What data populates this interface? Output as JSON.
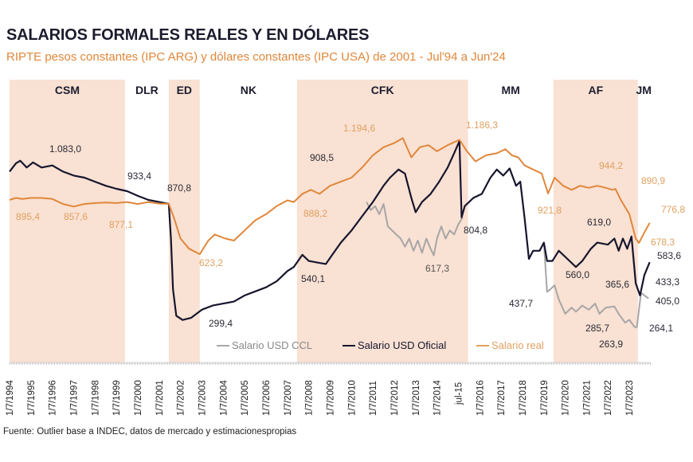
{
  "header": {
    "title": "SALARIOS FORMALES REALES Y EN DÓLARES",
    "subtitle": "RIPTE pesos constantes (IPC ARG) y dólares constantes (IPC USA) de 2001 - Jul'94 a Jun'24"
  },
  "footer": {
    "source": "Fuente: Outlier base a INDEC, datos de mercado y estimacionespropias"
  },
  "colors": {
    "real": "#e0873a",
    "oficial": "#15152e",
    "ccl": "#a6a6a6",
    "band": "#f9e1d3"
  },
  "chart_data": {
    "type": "line",
    "title": "SALARIOS FORMALES REALES Y EN DÓLARES",
    "xlim": [
      1994.5,
      2024.45
    ],
    "ylim": [
      250,
      1250
    ],
    "x_tick_labels": [
      "1/7/1994",
      "1/7/1995",
      "1/7/1996",
      "1/7/1997",
      "1/7/1998",
      "1/7/1999",
      "1/7/2000",
      "1/7/2001",
      "1/7/2002",
      "1/7/2003",
      "1/7/2004",
      "1/7/2005",
      "1/7/2006",
      "1/7/2007",
      "1/7/2008",
      "1/7/2009",
      "1/7/2010",
      "1/7/2011",
      "1/7/2012",
      "1/7/2013",
      "1/7/2014",
      "jul-15",
      "1/7/2016",
      "1/7/2017",
      "1/7/2018",
      "1/7/2019",
      "1/7/2020",
      "1/7/2021",
      "1/7/2022",
      "1/7/2023"
    ],
    "periods": [
      {
        "label": "CSM",
        "start": 1994.5,
        "end": 1999.9,
        "shaded": true
      },
      {
        "label": "DLR",
        "start": 1999.9,
        "end": 2001.95,
        "shaded": false
      },
      {
        "label": "ED",
        "start": 2001.95,
        "end": 2003.4,
        "shaded": true
      },
      {
        "label": "NK",
        "start": 2003.4,
        "end": 2007.95,
        "shaded": false
      },
      {
        "label": "CFK",
        "start": 2007.95,
        "end": 2015.95,
        "shaded": true
      },
      {
        "label": "MM",
        "start": 2015.95,
        "end": 2019.95,
        "shaded": false
      },
      {
        "label": "AF",
        "start": 2019.95,
        "end": 2023.9,
        "shaded": true
      },
      {
        "label": "JM",
        "start": 2023.9,
        "end": 2024.45,
        "shaded": false
      }
    ],
    "legend": [
      "Salario USD CCL",
      "Salario USD Oficial",
      "Salario real"
    ],
    "legend_position": "bottom-center",
    "series": [
      {
        "name": "Salario USD CCL",
        "color_key": "ccl",
        "points": [
          [
            2011.2,
            880
          ],
          [
            2011.4,
            840
          ],
          [
            2011.6,
            860
          ],
          [
            2011.8,
            820
          ],
          [
            2012.0,
            870
          ],
          [
            2012.2,
            760
          ],
          [
            2012.5,
            730
          ],
          [
            2012.8,
            700
          ],
          [
            2013.0,
            660
          ],
          [
            2013.2,
            700
          ],
          [
            2013.4,
            640
          ],
          [
            2013.6,
            690
          ],
          [
            2013.8,
            630
          ],
          [
            2014.0,
            700
          ],
          [
            2014.2,
            650
          ],
          [
            2014.35,
            617.3
          ],
          [
            2014.5,
            700
          ],
          [
            2014.7,
            760
          ],
          [
            2014.9,
            700
          ],
          [
            2015.1,
            740
          ],
          [
            2015.3,
            720
          ],
          [
            2015.5,
            770
          ],
          [
            2015.7,
            804.8
          ],
          [
            2019.5,
            680
          ],
          [
            2019.65,
            437.7
          ],
          [
            2019.8,
            450
          ],
          [
            2020.0,
            470
          ],
          [
            2020.2,
            400
          ],
          [
            2020.5,
            330
          ],
          [
            2020.8,
            360
          ],
          [
            2021.0,
            340
          ],
          [
            2021.3,
            370
          ],
          [
            2021.6,
            350
          ],
          [
            2021.9,
            380
          ],
          [
            2022.1,
            330
          ],
          [
            2022.4,
            360
          ],
          [
            2022.8,
            365.6
          ],
          [
            2023.0,
            330
          ],
          [
            2023.3,
            285.7
          ],
          [
            2023.5,
            300
          ],
          [
            2023.75,
            263.9
          ],
          [
            2023.85,
            264.1
          ],
          [
            2024.05,
            433.3
          ],
          [
            2024.2,
            420
          ],
          [
            2024.4,
            405.0
          ]
        ]
      },
      {
        "name": "Salario USD Oficial",
        "color_key": "oficial",
        "points": [
          [
            1994.5,
            1030
          ],
          [
            1994.8,
            1070
          ],
          [
            1995.0,
            1083.0
          ],
          [
            1995.3,
            1050
          ],
          [
            1995.6,
            1075
          ],
          [
            1996.0,
            1050
          ],
          [
            1996.5,
            1060
          ],
          [
            1997.0,
            1030
          ],
          [
            1997.5,
            1010
          ],
          [
            1998.0,
            1000
          ],
          [
            1998.5,
            980
          ],
          [
            1999.0,
            960
          ],
          [
            1999.5,
            945
          ],
          [
            2000.0,
            933.4
          ],
          [
            2000.5,
            910
          ],
          [
            2001.0,
            890
          ],
          [
            2001.5,
            880
          ],
          [
            2001.95,
            870.8
          ],
          [
            2002.05,
            700
          ],
          [
            2002.15,
            450
          ],
          [
            2002.3,
            320
          ],
          [
            2002.6,
            299.4
          ],
          [
            2003.0,
            310
          ],
          [
            2003.5,
            350
          ],
          [
            2004.0,
            370
          ],
          [
            2004.5,
            380
          ],
          [
            2005.0,
            390
          ],
          [
            2005.5,
            420
          ],
          [
            2006.0,
            440
          ],
          [
            2006.5,
            460
          ],
          [
            2007.0,
            490
          ],
          [
            2007.5,
            540.1
          ],
          [
            2007.8,
            560
          ],
          [
            2008.2,
            620
          ],
          [
            2008.5,
            590
          ],
          [
            2009.0,
            580
          ],
          [
            2009.3,
            575
          ],
          [
            2009.6,
            620
          ],
          [
            2010.0,
            680
          ],
          [
            2010.5,
            740
          ],
          [
            2011.0,
            810
          ],
          [
            2011.5,
            880
          ],
          [
            2012.0,
            960
          ],
          [
            2012.3,
            1000
          ],
          [
            2012.7,
            1040
          ],
          [
            2013.0,
            1020
          ],
          [
            2013.3,
            900
          ],
          [
            2013.5,
            830
          ],
          [
            2013.8,
            880
          ],
          [
            2014.2,
            920
          ],
          [
            2014.6,
            980
          ],
          [
            2015.0,
            1050
          ],
          [
            2015.3,
            1120
          ],
          [
            2015.55,
            1180
          ],
          [
            2015.65,
            804.8
          ],
          [
            2015.8,
            860
          ],
          [
            2016.2,
            900
          ],
          [
            2016.6,
            920
          ],
          [
            2017.0,
            1000
          ],
          [
            2017.3,
            1040
          ],
          [
            2017.6,
            1010
          ],
          [
            2017.9,
            1045
          ],
          [
            2018.2,
            960
          ],
          [
            2018.4,
            980
          ],
          [
            2018.6,
            800
          ],
          [
            2018.8,
            600
          ],
          [
            2019.0,
            640
          ],
          [
            2019.3,
            640
          ],
          [
            2019.5,
            680
          ],
          [
            2019.65,
            590
          ],
          [
            2019.9,
            590
          ],
          [
            2020.2,
            640
          ],
          [
            2020.6,
            600
          ],
          [
            2021.0,
            560.0
          ],
          [
            2021.3,
            590
          ],
          [
            2021.7,
            650
          ],
          [
            2022.0,
            680
          ],
          [
            2022.5,
            670
          ],
          [
            2022.8,
            700
          ],
          [
            2023.0,
            640
          ],
          [
            2023.2,
            700
          ],
          [
            2023.4,
            650
          ],
          [
            2023.6,
            710
          ],
          [
            2023.8,
            480
          ],
          [
            2024.0,
            420
          ],
          [
            2024.2,
            520
          ],
          [
            2024.45,
            583.6
          ]
        ]
      },
      {
        "name": "Salario real",
        "color_key": "real",
        "points": [
          [
            1994.5,
            890
          ],
          [
            1994.8,
            900
          ],
          [
            1995.1,
            895.4
          ],
          [
            1995.5,
            900
          ],
          [
            1996.0,
            900
          ],
          [
            1996.5,
            895
          ],
          [
            1997.0,
            870
          ],
          [
            1997.5,
            857.6
          ],
          [
            1998.0,
            870
          ],
          [
            1998.5,
            875
          ],
          [
            1999.0,
            877.1
          ],
          [
            1999.5,
            875
          ],
          [
            2000.0,
            880
          ],
          [
            2000.5,
            870
          ],
          [
            2001.0,
            880
          ],
          [
            2001.5,
            872
          ],
          [
            2001.95,
            870.8
          ],
          [
            2002.2,
            800
          ],
          [
            2002.5,
            700
          ],
          [
            2002.9,
            650
          ],
          [
            2003.4,
            623.2
          ],
          [
            2003.8,
            690
          ],
          [
            2004.1,
            720
          ],
          [
            2004.6,
            700
          ],
          [
            2005.0,
            690
          ],
          [
            2005.5,
            740
          ],
          [
            2006.0,
            790
          ],
          [
            2006.5,
            820
          ],
          [
            2007.0,
            860
          ],
          [
            2007.5,
            888.2
          ],
          [
            2007.8,
            880
          ],
          [
            2008.2,
            920
          ],
          [
            2008.6,
            940
          ],
          [
            2009.0,
            920
          ],
          [
            2009.5,
            960
          ],
          [
            2010.0,
            980
          ],
          [
            2010.5,
            1000
          ],
          [
            2011.0,
            1050
          ],
          [
            2011.5,
            1110
          ],
          [
            2012.0,
            1150
          ],
          [
            2012.5,
            1170
          ],
          [
            2012.9,
            1194.6
          ],
          [
            2013.3,
            1100
          ],
          [
            2013.7,
            1150
          ],
          [
            2014.1,
            1160
          ],
          [
            2014.5,
            1130
          ],
          [
            2015.0,
            1160
          ],
          [
            2015.55,
            1186.3
          ],
          [
            2015.9,
            1130
          ],
          [
            2016.3,
            1080
          ],
          [
            2016.8,
            1110
          ],
          [
            2017.3,
            1120
          ],
          [
            2017.7,
            1140
          ],
          [
            2018.0,
            1110
          ],
          [
            2018.3,
            1100
          ],
          [
            2018.6,
            1060
          ],
          [
            2019.0,
            1040
          ],
          [
            2019.4,
            1020
          ],
          [
            2019.7,
            921.8
          ],
          [
            2020.0,
            1000
          ],
          [
            2020.4,
            960
          ],
          [
            2020.8,
            940
          ],
          [
            2021.2,
            960
          ],
          [
            2021.6,
            950
          ],
          [
            2022.0,
            960
          ],
          [
            2022.4,
            950
          ],
          [
            2022.7,
            940
          ],
          [
            2022.85,
            944.2
          ],
          [
            2023.1,
            890.9
          ],
          [
            2023.5,
            820
          ],
          [
            2023.8,
            700
          ],
          [
            2023.95,
            678.3
          ],
          [
            2024.2,
            730
          ],
          [
            2024.45,
            776.8
          ]
        ]
      }
    ],
    "annotations": [
      {
        "text": "1.083,0",
        "series": "Salario USD Oficial"
      },
      {
        "text": "933,4",
        "series": "Salario USD Oficial"
      },
      {
        "text": "870,8",
        "series": "Salario USD Oficial"
      },
      {
        "text": "895,4",
        "series": "Salario real"
      },
      {
        "text": "857,6",
        "series": "Salario real"
      },
      {
        "text": "877,1",
        "series": "Salario real"
      },
      {
        "text": "623,2",
        "series": "Salario real"
      },
      {
        "text": "299,4",
        "series": "Salario USD Oficial"
      },
      {
        "text": "540,1",
        "series": "Salario USD Oficial"
      },
      {
        "text": "888,2",
        "series": "Salario real"
      },
      {
        "text": "908,5",
        "series": "Salario USD CCL"
      },
      {
        "text": "1.194,6",
        "series": "Salario real"
      },
      {
        "text": "1.186,3",
        "series": "Salario real"
      },
      {
        "text": "804,8",
        "series": "Salario USD Oficial"
      },
      {
        "text": "617,3",
        "series": "Salario USD CCL"
      },
      {
        "text": "921,8",
        "series": "Salario real"
      },
      {
        "text": "437,7",
        "series": "Salario USD CCL"
      },
      {
        "text": "560,0",
        "series": "Salario USD Oficial"
      },
      {
        "text": "944,2",
        "series": "Salario real"
      },
      {
        "text": "890,9",
        "series": "Salario real"
      },
      {
        "text": "619,0",
        "series": "Salario USD Oficial"
      },
      {
        "text": "776,8",
        "series": "Salario real"
      },
      {
        "text": "678,3",
        "series": "Salario real"
      },
      {
        "text": "583,6",
        "series": "Salario USD Oficial"
      },
      {
        "text": "433,3",
        "series": "Salario USD CCL"
      },
      {
        "text": "405,0",
        "series": "Salario USD CCL"
      },
      {
        "text": "365,6",
        "series": "Salario USD CCL"
      },
      {
        "text": "285,7",
        "series": "Salario USD CCL"
      },
      {
        "text": "264,1",
        "series": "Salario USD CCL"
      },
      {
        "text": "263,9",
        "series": "Salario USD CCL"
      }
    ]
  }
}
